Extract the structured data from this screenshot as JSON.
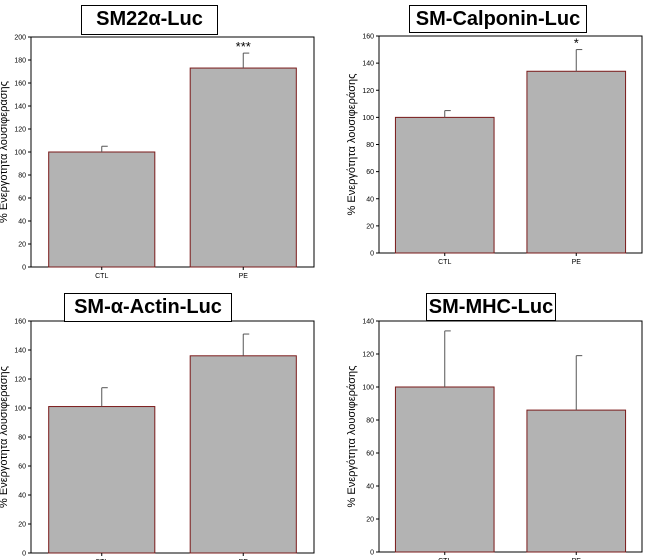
{
  "chart_data": [
    {
      "type": "bar",
      "title": "SM22α-Luc",
      "ylabel": "% Ενεργότητα λουσιφεράσης",
      "categories": [
        "CTL",
        "PE"
      ],
      "values": [
        100,
        173
      ],
      "errors": [
        5,
        13
      ],
      "annotations": [
        "",
        "***"
      ],
      "ylim": [
        0,
        200
      ],
      "yticks": [
        "0",
        "20",
        "40",
        "60",
        "80",
        "100",
        "120",
        "140",
        "160",
        "180",
        "200"
      ],
      "bar_color": "#b3b3b3",
      "bar_edge_color": "#7a1a1a",
      "grid": false,
      "legend": "none"
    },
    {
      "type": "bar",
      "title": "SM-Calponin-Luc",
      "ylabel": "% Ενεργότητα λουσιφεράσης",
      "categories": [
        "CTL",
        "PE"
      ],
      "values": [
        100,
        134
      ],
      "errors": [
        5,
        16
      ],
      "annotations": [
        "",
        "*"
      ],
      "ylim": [
        0,
        160
      ],
      "yticks": [
        "0",
        "20",
        "40",
        "60",
        "80",
        "100",
        "120",
        "140",
        "160"
      ],
      "bar_color": "#b3b3b3",
      "bar_edge_color": "#7a1a1a",
      "grid": false,
      "legend": "none"
    },
    {
      "type": "bar",
      "title": "SM-α-Actin-Luc",
      "ylabel": "% Ενεργότητα λουσιφεράσης",
      "categories": [
        "CTL",
        "PE"
      ],
      "values": [
        101,
        136
      ],
      "errors": [
        13,
        15
      ],
      "annotations": [
        "",
        ""
      ],
      "ylim": [
        0,
        160
      ],
      "yticks": [
        "0",
        "20",
        "40",
        "60",
        "80",
        "100",
        "120",
        "140",
        "160"
      ],
      "bar_color": "#b3b3b3",
      "bar_edge_color": "#7a1a1a",
      "grid": false,
      "legend": "none"
    },
    {
      "type": "bar",
      "title": "SM-MHC-Luc",
      "ylabel": "% Ενεργότητα λουσιφεράσης",
      "categories": [
        "CTL",
        "PE"
      ],
      "values": [
        100,
        86
      ],
      "errors": [
        34,
        33
      ],
      "annotations": [
        "",
        ""
      ],
      "ylim": [
        0,
        140
      ],
      "yticks": [
        "0",
        "20",
        "40",
        "60",
        "80",
        "100",
        "120",
        "140"
      ],
      "bar_color": "#b3b3b3",
      "bar_edge_color": "#7a1a1a",
      "grid": false,
      "legend": "none"
    }
  ]
}
